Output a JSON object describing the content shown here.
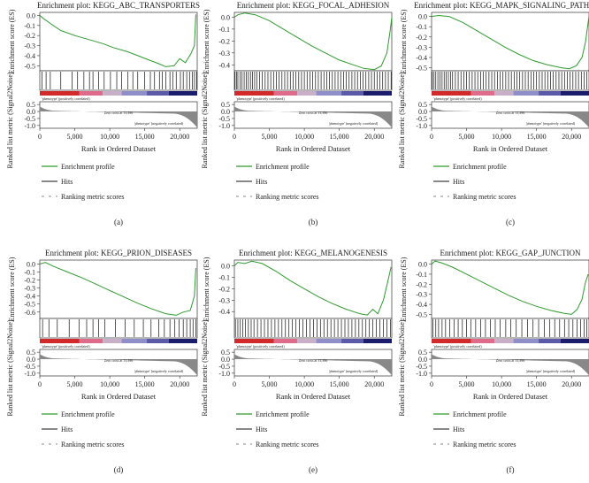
{
  "colors": {
    "profile": "#2f9a2f",
    "hits": "#111111",
    "rank": "#888888",
    "pos": "#d03030",
    "neg": "#1c1c6e"
  },
  "common": {
    "es_label": "Enrichment score (ES)",
    "rank_label": "Ranked list metric (Signal2Noise)",
    "x_label": "Rank in Ordered Dataset",
    "x_ticks": [
      "0",
      "5,000",
      "10,000",
      "15,000",
      "20,000"
    ],
    "rank_ticks": [
      "0.5",
      "0.0",
      "-0.5",
      "-1.0"
    ],
    "pos_note": "'phenotype' (positively correlated)",
    "neg_note": "'phenotype' (negatively correlated)",
    "legend": [
      "Enrichment profile",
      "Hits",
      "Ranking metric scores"
    ]
  },
  "chart_data": [
    {
      "panel": "(a)",
      "type": "line",
      "title": "Enrichment plot: KEGG_ABC_TRANSPORTERS",
      "yticks": [
        "0.0",
        "-0.1",
        "-0.2",
        "-0.3",
        "-0.4",
        "-0.5"
      ],
      "ylim": [
        -0.55,
        0.03
      ],
      "xlim": [
        0,
        22500
      ],
      "zero_note": "Zero cross at 11,396",
      "es": [
        [
          0,
          0
        ],
        [
          500,
          -0.03
        ],
        [
          1500,
          -0.08
        ],
        [
          3000,
          -0.15
        ],
        [
          5000,
          -0.2
        ],
        [
          7000,
          -0.24
        ],
        [
          9000,
          -0.28
        ],
        [
          10500,
          -0.32
        ],
        [
          12500,
          -0.36
        ],
        [
          14000,
          -0.4
        ],
        [
          15500,
          -0.44
        ],
        [
          17000,
          -0.48
        ],
        [
          18000,
          -0.51
        ],
        [
          19200,
          -0.5
        ],
        [
          20000,
          -0.43
        ],
        [
          20800,
          -0.47
        ],
        [
          21600,
          -0.38
        ],
        [
          22100,
          -0.3
        ],
        [
          22300,
          0.01
        ]
      ],
      "hits": [
        300,
        900,
        1500,
        3000,
        4600,
        5400,
        6300,
        7100,
        7600,
        8400,
        9200,
        10100,
        11000,
        11700,
        12600,
        13300,
        14000,
        15000,
        15800,
        16400,
        17100,
        17500,
        18000,
        18600,
        19000,
        19500,
        20100,
        20500,
        21000,
        21400,
        21800,
        22100,
        22400
      ]
    },
    {
      "panel": "(b)",
      "type": "line",
      "title": "Enrichment plot: KEGG_FOCAL_ADHESION",
      "yticks": [
        "0.0",
        "-0.1",
        "-0.2",
        "-0.3",
        "-0.4"
      ],
      "ylim": [
        -0.45,
        0.04
      ],
      "xlim": [
        0,
        22500
      ],
      "zero_note": "Zero cross at 11,396",
      "es": [
        [
          0,
          0
        ],
        [
          500,
          0.02
        ],
        [
          1500,
          0.035
        ],
        [
          3000,
          0.02
        ],
        [
          5000,
          -0.03
        ],
        [
          7000,
          -0.1
        ],
        [
          9000,
          -0.17
        ],
        [
          11000,
          -0.24
        ],
        [
          13000,
          -0.3
        ],
        [
          15000,
          -0.36
        ],
        [
          17000,
          -0.4
        ],
        [
          18500,
          -0.43
        ],
        [
          20000,
          -0.44
        ],
        [
          21000,
          -0.41
        ],
        [
          21800,
          -0.3
        ],
        [
          22300,
          -0.1
        ],
        [
          22500,
          0
        ]
      ],
      "hits": [
        100,
        300,
        500,
        800,
        1100,
        1400,
        1700,
        2000,
        2300,
        2600,
        2900,
        3200,
        3600,
        4000,
        4400,
        4800,
        5200,
        5600,
        6000,
        6400,
        6800,
        7200,
        7600,
        8000,
        8400,
        8800,
        9200,
        9600,
        10000,
        10400,
        10800,
        11200,
        11600,
        12000,
        12400,
        12800,
        13200,
        13600,
        14000,
        14400,
        14800,
        15200,
        15600,
        16000,
        16400,
        16800,
        17200,
        17600,
        18000,
        18400,
        18800,
        19200,
        19600,
        20000,
        20400,
        20800,
        21200,
        21600,
        22000,
        22400
      ]
    },
    {
      "panel": "(c)",
      "type": "line",
      "title": "Enrichment plot: KEGG_MAPK_SIGNALING_PATHWAY",
      "yticks": [
        "0.0",
        "-0.1",
        "-0.2",
        "-0.3",
        "-0.4",
        "-0.5"
      ],
      "ylim": [
        -0.53,
        0.04
      ],
      "xlim": [
        0,
        22500
      ],
      "zero_note": "Zero cross at 11,396",
      "es": [
        [
          0,
          0
        ],
        [
          1000,
          0.01
        ],
        [
          2500,
          0
        ],
        [
          4500,
          -0.06
        ],
        [
          6500,
          -0.14
        ],
        [
          8500,
          -0.22
        ],
        [
          10500,
          -0.3
        ],
        [
          12500,
          -0.37
        ],
        [
          14500,
          -0.43
        ],
        [
          16500,
          -0.47
        ],
        [
          18500,
          -0.5
        ],
        [
          19700,
          -0.51
        ],
        [
          20700,
          -0.48
        ],
        [
          21500,
          -0.4
        ],
        [
          22000,
          -0.25
        ],
        [
          22500,
          0
        ]
      ],
      "hits": [
        100,
        350,
        600,
        900,
        1200,
        1500,
        1800,
        2100,
        2400,
        2700,
        3000,
        3400,
        3800,
        4200,
        4600,
        5000,
        5400,
        5800,
        6200,
        6600,
        7000,
        7400,
        7800,
        8200,
        8600,
        9000,
        9400,
        9800,
        10200,
        10600,
        11000,
        11400,
        11800,
        12200,
        12600,
        13000,
        13400,
        13800,
        14200,
        14600,
        15000,
        15400,
        15800,
        16200,
        16600,
        17000,
        17400,
        17800,
        18200,
        18600,
        19000,
        19400,
        19800,
        20200,
        20600,
        21000,
        21400,
        21800,
        22200
      ]
    },
    {
      "panel": "(d)",
      "type": "line",
      "title": "Enrichment plot: KEGG_PRION_DISEASES",
      "yticks": [
        "0.0",
        "-0.1",
        "-0.2",
        "-0.3",
        "-0.4",
        "-0.5",
        "-0.6"
      ],
      "ylim": [
        -0.68,
        0.05
      ],
      "xlim": [
        0,
        22500
      ],
      "zero_note": "Zero cross at 11,396",
      "es": [
        [
          0,
          0
        ],
        [
          800,
          0.02
        ],
        [
          2000,
          -0.03
        ],
        [
          4000,
          -0.1
        ],
        [
          6000,
          -0.17
        ],
        [
          8000,
          -0.25
        ],
        [
          10000,
          -0.33
        ],
        [
          12000,
          -0.41
        ],
        [
          14000,
          -0.49
        ],
        [
          16000,
          -0.56
        ],
        [
          18000,
          -0.62
        ],
        [
          19500,
          -0.64
        ],
        [
          20500,
          -0.6
        ],
        [
          21500,
          -0.58
        ],
        [
          22100,
          -0.4
        ],
        [
          22300,
          -0.05
        ]
      ],
      "hits": [
        400,
        1300,
        2500,
        4200,
        5600,
        6700,
        7600,
        8400,
        9300,
        10800,
        12200,
        13500,
        14800,
        15900,
        17000,
        17800,
        18600,
        19300,
        19900,
        20500,
        21000,
        21500,
        21900,
        22300
      ]
    },
    {
      "panel": "(e)",
      "type": "line",
      "title": "Enrichment plot: KEGG_MELANOGENESIS",
      "yticks": [
        "0.0",
        "-0.1",
        "-0.2",
        "-0.3",
        "-0.4"
      ],
      "ylim": [
        -0.46,
        0.05
      ],
      "xlim": [
        0,
        22500
      ],
      "zero_note": "Zero cross at 11,396",
      "es": [
        [
          0,
          0
        ],
        [
          500,
          0.03
        ],
        [
          1500,
          0.02
        ],
        [
          2500,
          0.04
        ],
        [
          4000,
          0.02
        ],
        [
          6000,
          -0.05
        ],
        [
          8000,
          -0.13
        ],
        [
          10000,
          -0.2
        ],
        [
          12000,
          -0.27
        ],
        [
          14000,
          -0.33
        ],
        [
          16000,
          -0.38
        ],
        [
          18000,
          -0.42
        ],
        [
          19000,
          -0.43
        ],
        [
          19800,
          -0.38
        ],
        [
          20500,
          -0.42
        ],
        [
          21300,
          -0.3
        ],
        [
          22000,
          -0.12
        ],
        [
          22400,
          -0.01
        ]
      ],
      "hits": [
        150,
        500,
        850,
        1200,
        1600,
        2000,
        2400,
        2800,
        3300,
        3800,
        4300,
        4800,
        5300,
        5800,
        6300,
        6800,
        7300,
        7800,
        8300,
        8800,
        9300,
        9800,
        10300,
        10800,
        11300,
        11800,
        12300,
        12800,
        13300,
        13800,
        14300,
        14800,
        15300,
        15800,
        16300,
        16800,
        17300,
        17800,
        18300,
        18800,
        19300,
        19800,
        20300,
        20800,
        21300,
        21800,
        22300
      ]
    },
    {
      "panel": "(f)",
      "type": "line",
      "title": "Enrichment plot: KEGG_GAP_JUNCTION",
      "yticks": [
        "0.0",
        "-0.1",
        "-0.2",
        "-0.3",
        "-0.4",
        "-0.5"
      ],
      "ylim": [
        -0.54,
        0.04
      ],
      "xlim": [
        0,
        22500
      ],
      "zero_note": "Zero cross at 11,396",
      "es": [
        [
          0,
          0
        ],
        [
          500,
          0.03
        ],
        [
          1500,
          0.01
        ],
        [
          3000,
          -0.03
        ],
        [
          5000,
          -0.1
        ],
        [
          7000,
          -0.17
        ],
        [
          9000,
          -0.24
        ],
        [
          11000,
          -0.31
        ],
        [
          13000,
          -0.37
        ],
        [
          15000,
          -0.42
        ],
        [
          17000,
          -0.46
        ],
        [
          19000,
          -0.49
        ],
        [
          20000,
          -0.5
        ],
        [
          20800,
          -0.45
        ],
        [
          21500,
          -0.35
        ],
        [
          22000,
          -0.18
        ],
        [
          22400,
          -0.1
        ]
      ],
      "hits": [
        200,
        600,
        1000,
        1500,
        2000,
        2600,
        3200,
        3800,
        4400,
        5000,
        5600,
        6300,
        7000,
        7700,
        8400,
        9100,
        9800,
        10600,
        11300,
        12100,
        12900,
        13700,
        14500,
        15300,
        16100,
        16900,
        17600,
        18300,
        19000,
        19600,
        20200,
        20800,
        21300,
        21800,
        22200
      ]
    }
  ]
}
